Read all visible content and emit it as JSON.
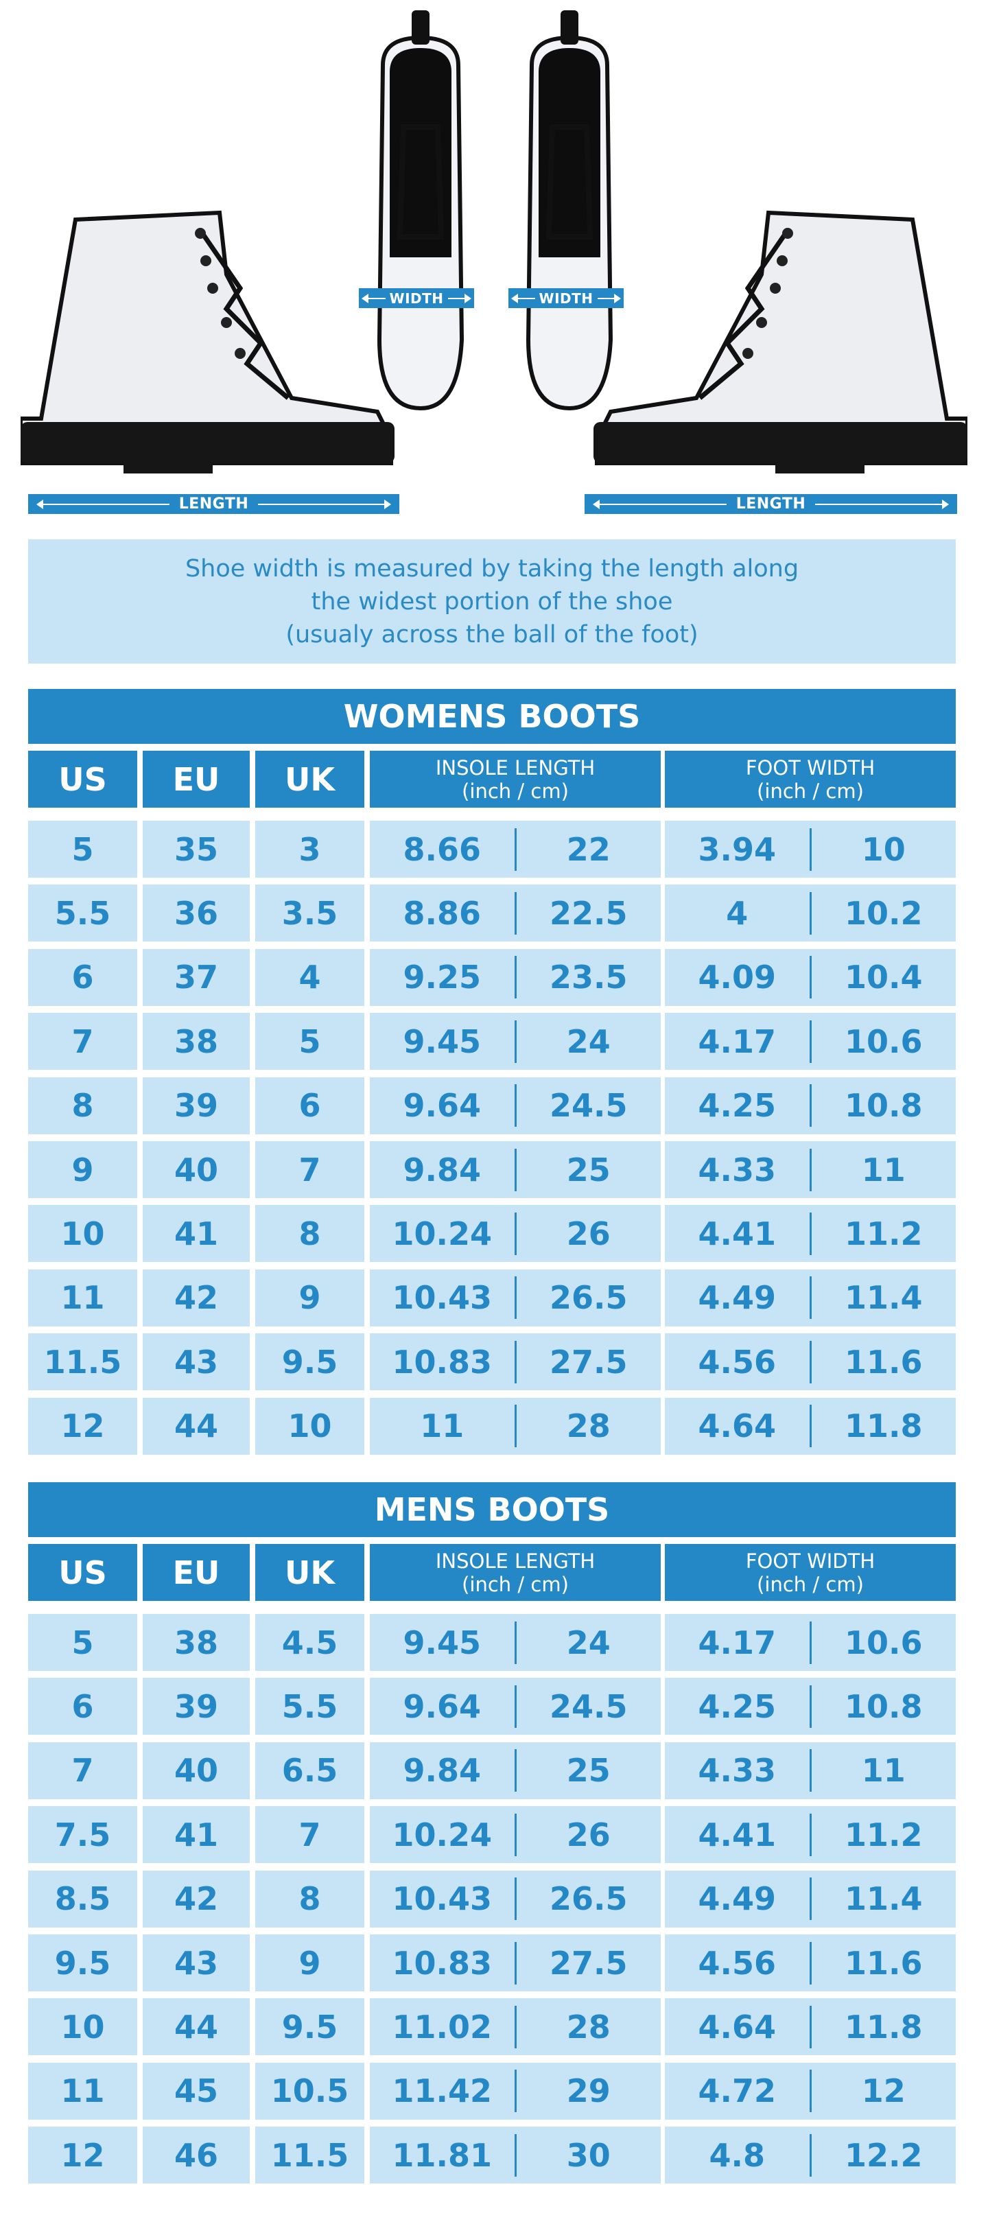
{
  "diagram": {
    "length_label": "LENGTH",
    "width_label": "WIDTH"
  },
  "info": {
    "lines": [
      "Shoe width is measured by taking the length along",
      "the widest portion of the shoe",
      "(usualy across the ball of the foot)"
    ]
  },
  "colors": {
    "primary": "#2488c6",
    "light": "#c6e4f6",
    "text": "#2a8ac6"
  },
  "headers": {
    "us": "US",
    "eu": "EU",
    "uk": "UK",
    "insole": "INSOLE LENGTH",
    "insole_unit": "(inch / cm)",
    "foot": "FOOT WIDTH",
    "foot_unit": "(inch / cm)"
  },
  "tables": [
    {
      "title": "WOMENS BOOTS",
      "rows": [
        [
          "5",
          "35",
          "3",
          "8.66",
          "22",
          "3.94",
          "10"
        ],
        [
          "5.5",
          "36",
          "3.5",
          "8.86",
          "22.5",
          "4",
          "10.2"
        ],
        [
          "6",
          "37",
          "4",
          "9.25",
          "23.5",
          "4.09",
          "10.4"
        ],
        [
          "7",
          "38",
          "5",
          "9.45",
          "24",
          "4.17",
          "10.6"
        ],
        [
          "8",
          "39",
          "6",
          "9.64",
          "24.5",
          "4.25",
          "10.8"
        ],
        [
          "9",
          "40",
          "7",
          "9.84",
          "25",
          "4.33",
          "11"
        ],
        [
          "10",
          "41",
          "8",
          "10.24",
          "26",
          "4.41",
          "11.2"
        ],
        [
          "11",
          "42",
          "9",
          "10.43",
          "26.5",
          "4.49",
          "11.4"
        ],
        [
          "11.5",
          "43",
          "9.5",
          "10.83",
          "27.5",
          "4.56",
          "11.6"
        ],
        [
          "12",
          "44",
          "10",
          "11",
          "28",
          "4.64",
          "11.8"
        ]
      ]
    },
    {
      "title": "MENS BOOTS",
      "rows": [
        [
          "5",
          "38",
          "4.5",
          "9.45",
          "24",
          "4.17",
          "10.6"
        ],
        [
          "6",
          "39",
          "5.5",
          "9.64",
          "24.5",
          "4.25",
          "10.8"
        ],
        [
          "7",
          "40",
          "6.5",
          "9.84",
          "25",
          "4.33",
          "11"
        ],
        [
          "7.5",
          "41",
          "7",
          "10.24",
          "26",
          "4.41",
          "11.2"
        ],
        [
          "8.5",
          "42",
          "8",
          "10.43",
          "26.5",
          "4.49",
          "11.4"
        ],
        [
          "9.5",
          "43",
          "9",
          "10.83",
          "27.5",
          "4.56",
          "11.6"
        ],
        [
          "10",
          "44",
          "9.5",
          "11.02",
          "28",
          "4.64",
          "11.8"
        ],
        [
          "11",
          "45",
          "10.5",
          "11.42",
          "29",
          "4.72",
          "12"
        ],
        [
          "12",
          "46",
          "11.5",
          "11.81",
          "30",
          "4.8",
          "12.2"
        ]
      ]
    }
  ]
}
